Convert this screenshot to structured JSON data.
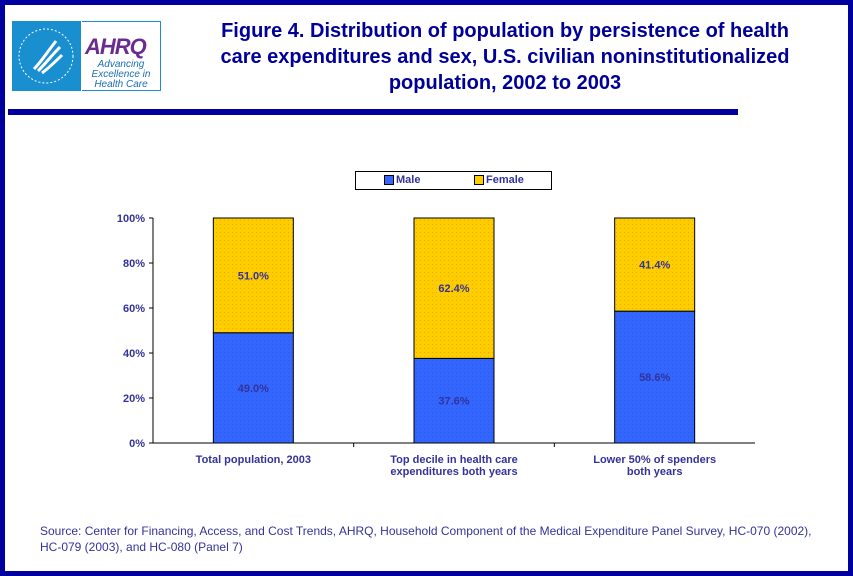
{
  "header": {
    "logo_hhs": "Department of Health & Human Services USA",
    "logo_ahrq": "AHRQ",
    "logo_tagline": "Advancing Excellence in Health Care",
    "title": "Figure 4. Distribution of population by persistence of health care expenditures and sex, U.S. civilian noninstitutionalized population, 2002 to 2003"
  },
  "chart_data": {
    "type": "bar",
    "stacked": true,
    "categories": [
      [
        "Total population, 2003"
      ],
      [
        "Top decile in health care",
        "expenditures both years"
      ],
      [
        "Lower 50% of spenders",
        "both years"
      ]
    ],
    "series": [
      {
        "name": "Male",
        "values": [
          49.0,
          37.6,
          58.6
        ],
        "labels": [
          "49.0%",
          "37.6%",
          "58.6%"
        ],
        "color": "#3366ff"
      },
      {
        "name": "Female",
        "values": [
          51.0,
          62.4,
          41.4
        ],
        "labels": [
          "51.0%",
          "62.4%",
          "41.4%"
        ],
        "color": "#ffcc00"
      }
    ],
    "ylim": [
      0,
      100
    ],
    "yticks": [
      "0%",
      "20%",
      "40%",
      "60%",
      "80%",
      "100%"
    ],
    "legend": "top",
    "grid": false
  },
  "source": "Source: Center for Financing, Access, and Cost Trends, AHRQ, Household Component of the Medical Expenditure Panel Survey, HC-070 (2002), HC-079 (2003), and HC-080 (Panel 7)"
}
